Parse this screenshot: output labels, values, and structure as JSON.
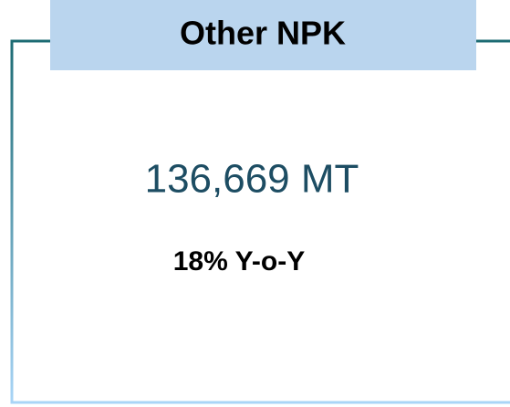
{
  "card": {
    "title": "Other NPK",
    "value": "136,669 MT",
    "change": "18% Y-o-Y"
  }
}
